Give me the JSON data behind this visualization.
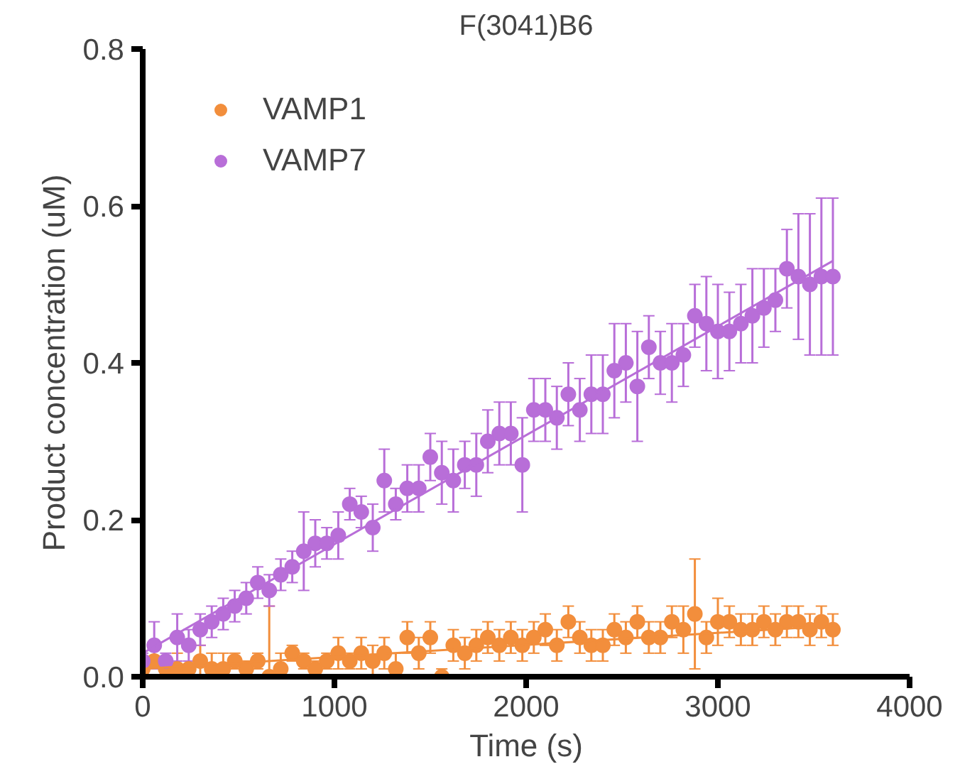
{
  "chart_data": {
    "type": "scatter",
    "title": "F(3041)B6",
    "xlabel": "Time (s)",
    "ylabel": "Product concentration (uM)",
    "xlim": [
      0,
      4000
    ],
    "xticks": [
      0,
      1000,
      2000,
      3000,
      4000
    ],
    "ylim": [
      0,
      0.8
    ],
    "yticks": [
      {
        "value": 0,
        "label": "0.0"
      },
      0.2,
      0.4,
      0.6,
      0.8
    ],
    "grid": false,
    "legend": "top left",
    "marker": "circle",
    "series": [
      {
        "name": "VAMP1",
        "color": "#f28e3c",
        "x": [
          0,
          60,
          120,
          180,
          240,
          300,
          360,
          420,
          480,
          540,
          600,
          660,
          720,
          780,
          840,
          900,
          960,
          1020,
          1080,
          1140,
          1200,
          1260,
          1320,
          1380,
          1440,
          1500,
          1560,
          1620,
          1680,
          1740,
          1800,
          1860,
          1920,
          1980,
          2040,
          2100,
          2160,
          2220,
          2280,
          2340,
          2400,
          2460,
          2520,
          2580,
          2640,
          2700,
          2760,
          2820,
          2880,
          2940,
          3000,
          3060,
          3120,
          3180,
          3240,
          3300,
          3360,
          3420,
          3480,
          3540,
          3600
        ],
        "values": [
          0.01,
          0.02,
          0.01,
          0.01,
          0.01,
          0.02,
          0.01,
          0.01,
          0.02,
          0.01,
          0.02,
          0.0,
          0.01,
          0.03,
          0.02,
          0.01,
          0.02,
          0.03,
          0.02,
          0.03,
          0.02,
          0.03,
          0.01,
          0.05,
          0.03,
          0.05,
          0.0,
          0.04,
          0.03,
          0.04,
          0.05,
          0.04,
          0.05,
          0.04,
          0.05,
          0.06,
          0.04,
          0.07,
          0.05,
          0.04,
          0.04,
          0.06,
          0.05,
          0.07,
          0.05,
          0.05,
          0.07,
          0.06,
          0.08,
          0.05,
          0.07,
          0.07,
          0.06,
          0.06,
          0.07,
          0.06,
          0.07,
          0.07,
          0.06,
          0.07,
          0.06
        ],
        "errors": [
          null,
          null,
          null,
          0.02,
          null,
          0.02,
          0.02,
          0.02,
          0.01,
          0.01,
          0.01,
          0.09,
          0.02,
          0.01,
          0.01,
          0.01,
          0.01,
          0.02,
          0.01,
          0.02,
          0.02,
          0.02,
          0.02,
          0.02,
          0.02,
          0.02,
          0.01,
          0.02,
          0.02,
          0.02,
          0.02,
          0.02,
          0.02,
          0.02,
          0.02,
          0.02,
          0.02,
          0.02,
          0.02,
          0.02,
          0.02,
          0.02,
          0.02,
          0.02,
          0.02,
          0.02,
          0.02,
          0.03,
          0.07,
          0.02,
          0.03,
          0.02,
          0.02,
          0.02,
          0.02,
          0.02,
          0.02,
          0.02,
          0.02,
          0.02,
          0.02
        ]
      },
      {
        "name": "VAMP7",
        "color": "#b86ed8",
        "x": [
          0,
          60,
          120,
          180,
          240,
          300,
          360,
          420,
          480,
          540,
          600,
          660,
          720,
          780,
          840,
          900,
          960,
          1020,
          1080,
          1140,
          1200,
          1260,
          1320,
          1380,
          1440,
          1500,
          1560,
          1620,
          1680,
          1740,
          1800,
          1860,
          1920,
          1980,
          2040,
          2100,
          2160,
          2220,
          2280,
          2340,
          2400,
          2460,
          2520,
          2580,
          2640,
          2700,
          2760,
          2820,
          2880,
          2940,
          3000,
          3060,
          3120,
          3180,
          3240,
          3300,
          3360,
          3420,
          3480,
          3540,
          3600
        ],
        "values": [
          0.02,
          0.04,
          0.02,
          0.05,
          0.04,
          0.06,
          0.07,
          0.08,
          0.09,
          0.1,
          0.12,
          0.11,
          0.13,
          0.14,
          0.16,
          0.17,
          0.17,
          0.18,
          0.22,
          0.21,
          0.19,
          0.25,
          0.22,
          0.24,
          0.24,
          0.28,
          0.26,
          0.25,
          0.27,
          0.27,
          0.3,
          0.31,
          0.31,
          0.27,
          0.34,
          0.34,
          0.33,
          0.36,
          0.34,
          0.36,
          0.36,
          0.39,
          0.4,
          0.37,
          0.42,
          0.4,
          0.4,
          0.41,
          0.46,
          0.45,
          0.44,
          0.44,
          0.45,
          0.46,
          0.47,
          0.48,
          0.52,
          0.51,
          0.5,
          0.51,
          0.51
        ],
        "errors": [
          0.01,
          0.03,
          0.01,
          0.03,
          0.02,
          0.02,
          0.02,
          0.02,
          0.02,
          0.02,
          0.02,
          0.02,
          0.02,
          0.02,
          0.05,
          0.03,
          0.02,
          0.03,
          0.02,
          0.02,
          0.03,
          0.04,
          0.02,
          0.03,
          0.03,
          0.03,
          0.04,
          0.04,
          0.03,
          0.04,
          0.04,
          0.04,
          0.04,
          0.06,
          0.04,
          0.04,
          0.04,
          0.04,
          0.04,
          0.05,
          0.05,
          0.06,
          0.05,
          0.07,
          0.04,
          0.04,
          0.05,
          0.04,
          0.04,
          0.06,
          0.06,
          0.05,
          0.05,
          0.06,
          0.05,
          0.04,
          0.05,
          0.08,
          0.09,
          0.1,
          0.1
        ]
      },
      {
        "type": "line",
        "marker": "none",
        "color": "#f28e3c",
        "x": [
          0,
          3600
        ],
        "values": [
          0.01,
          0.065
        ]
      },
      {
        "type": "line",
        "marker": "none",
        "color": "#b86ed8",
        "x": [
          0,
          3600
        ],
        "values": [
          0.03,
          0.53
        ]
      }
    ]
  }
}
